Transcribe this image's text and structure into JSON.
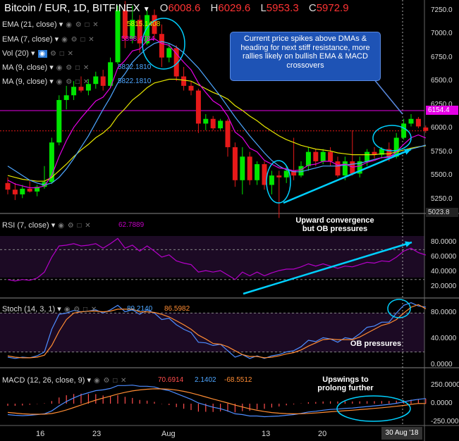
{
  "header": {
    "symbol": "Bitcoin / EUR, 1D, BITFINEX",
    "o_label": "O",
    "o_value": "6008.6",
    "h_label": "H",
    "h_value": "6029.6",
    "l_label": "L",
    "l_value": "5953.3",
    "c_label": "C",
    "c_value": "5972.9"
  },
  "indicators": {
    "ema21": {
      "label": "EMA (21, close)",
      "value": "5815.1408"
    },
    "ema7": {
      "label": "EMA (7, close)",
      "value": "5898.4784"
    },
    "vol": {
      "label": "Vol (20)"
    },
    "ma9a": {
      "label": "MA (9, close)",
      "value": "5822.1810"
    },
    "ma9b": {
      "label": "MA (9, close)",
      "value": "5822.1810"
    },
    "rsi": {
      "label": "RSI (7, close)",
      "value": "62.7889"
    },
    "stoch": {
      "label": "Stoch (14, 3, 1)",
      "k": "89.2140",
      "d": "86.5982"
    },
    "macd": {
      "label": "MACD (12, 26, close, 9)",
      "v1": "70.6914",
      "v2": "2.1402",
      "v3": "-68.5512"
    }
  },
  "annotations": {
    "callout": "Current price spikes above DMAs & heading for next stiff resistance, more rallies likely on bullish EMA & MACD crossovers",
    "rsi_note_1": "Upward convergence",
    "rsi_note_2": "but OB pressures",
    "stoch_note": "OB pressures",
    "macd_note_1": "Upswings to",
    "macd_note_2": "prolong further"
  },
  "price_axis": {
    "ticks": [
      "7250.0",
      "7000.0",
      "6750.0",
      "6500.0",
      "6250.0",
      "6000.0",
      "5750.0",
      "5500.0",
      "5250.0"
    ],
    "last_price": "6154.4",
    "low_tag": "5023.8"
  },
  "rsi_axis": {
    "ticks": [
      "80.0000",
      "60.0000",
      "40.0000",
      "20.0000"
    ]
  },
  "stoch_axis": {
    "ticks": [
      "80.0000",
      "40.0000",
      "0.0000"
    ]
  },
  "macd_axis": {
    "ticks": [
      "250.0000",
      "0.0000",
      "-250.0000"
    ]
  },
  "x_axis": {
    "labels": [
      "16",
      "23",
      "Aug",
      "13",
      "20"
    ],
    "current_date": "30 Aug '18"
  },
  "colors": {
    "up": "#00e600",
    "down": "#e61919",
    "ema21": "#e6e600",
    "ema7": "#e600e6",
    "ma9": "#4da6ff",
    "annotation": "#00d0ff"
  },
  "chart_data": {
    "type": "candlestick",
    "ylim": [
      5000,
      7350
    ],
    "candles": [
      {
        "o": 5420,
        "h": 5480,
        "l": 5300,
        "c": 5350
      },
      {
        "o": 5350,
        "h": 5420,
        "l": 5240,
        "c": 5300
      },
      {
        "o": 5300,
        "h": 5400,
        "l": 5260,
        "c": 5360
      },
      {
        "o": 5360,
        "h": 5440,
        "l": 5320,
        "c": 5330
      },
      {
        "o": 5330,
        "h": 5400,
        "l": 5280,
        "c": 5380
      },
      {
        "o": 5380,
        "h": 5600,
        "l": 5360,
        "c": 5430
      },
      {
        "o": 5430,
        "h": 5900,
        "l": 5410,
        "c": 5850
      },
      {
        "o": 5850,
        "h": 6350,
        "l": 5820,
        "c": 6300
      },
      {
        "o": 6300,
        "h": 6450,
        "l": 6200,
        "c": 6350
      },
      {
        "o": 6350,
        "h": 6500,
        "l": 6300,
        "c": 6440
      },
      {
        "o": 6440,
        "h": 6550,
        "l": 6380,
        "c": 6400
      },
      {
        "o": 6400,
        "h": 6520,
        "l": 6350,
        "c": 6470
      },
      {
        "o": 6470,
        "h": 6600,
        "l": 6420,
        "c": 6550
      },
      {
        "o": 6550,
        "h": 6620,
        "l": 6400,
        "c": 6450
      },
      {
        "o": 6450,
        "h": 6750,
        "l": 6430,
        "c": 6700
      },
      {
        "o": 6700,
        "h": 7300,
        "l": 6680,
        "c": 7250
      },
      {
        "o": 7250,
        "h": 7350,
        "l": 6850,
        "c": 6950
      },
      {
        "o": 6950,
        "h": 7300,
        "l": 6900,
        "c": 7150
      },
      {
        "o": 7150,
        "h": 7200,
        "l": 6800,
        "c": 6900
      },
      {
        "o": 6900,
        "h": 7250,
        "l": 6880,
        "c": 7200
      },
      {
        "o": 7200,
        "h": 7260,
        "l": 6950,
        "c": 7000
      },
      {
        "o": 7000,
        "h": 7100,
        "l": 6650,
        "c": 6750
      },
      {
        "o": 6750,
        "h": 6900,
        "l": 6700,
        "c": 6850
      },
      {
        "o": 6850,
        "h": 6880,
        "l": 6500,
        "c": 6550
      },
      {
        "o": 6550,
        "h": 6650,
        "l": 6400,
        "c": 6450
      },
      {
        "o": 6450,
        "h": 6500,
        "l": 6350,
        "c": 6400
      },
      {
        "o": 6400,
        "h": 6420,
        "l": 5950,
        "c": 6050
      },
      {
        "o": 6050,
        "h": 6150,
        "l": 5980,
        "c": 6100
      },
      {
        "o": 6100,
        "h": 6130,
        "l": 5980,
        "c": 6000
      },
      {
        "o": 6000,
        "h": 6100,
        "l": 5980,
        "c": 6080
      },
      {
        "o": 6080,
        "h": 6100,
        "l": 5700,
        "c": 5800
      },
      {
        "o": 5800,
        "h": 5850,
        "l": 5380,
        "c": 5450
      },
      {
        "o": 5450,
        "h": 5800,
        "l": 5300,
        "c": 5700
      },
      {
        "o": 5700,
        "h": 5750,
        "l": 5400,
        "c": 5450
      },
      {
        "o": 5450,
        "h": 5650,
        "l": 5400,
        "c": 5620
      },
      {
        "o": 5620,
        "h": 5650,
        "l": 5350,
        "c": 5400
      },
      {
        "o": 5400,
        "h": 5550,
        "l": 5300,
        "c": 5500
      },
      {
        "o": 5500,
        "h": 5550,
        "l": 5050,
        "c": 5480
      },
      {
        "o": 5480,
        "h": 5600,
        "l": 5420,
        "c": 5550
      },
      {
        "o": 5550,
        "h": 5900,
        "l": 5450,
        "c": 5500
      },
      {
        "o": 5500,
        "h": 5650,
        "l": 5480,
        "c": 5600
      },
      {
        "o": 5600,
        "h": 5800,
        "l": 5550,
        "c": 5750
      },
      {
        "o": 5750,
        "h": 5780,
        "l": 5600,
        "c": 5650
      },
      {
        "o": 5650,
        "h": 5780,
        "l": 5620,
        "c": 5750
      },
      {
        "o": 5750,
        "h": 5800,
        "l": 5600,
        "c": 5650
      },
      {
        "o": 5650,
        "h": 5700,
        "l": 5480,
        "c": 5500
      },
      {
        "o": 5500,
        "h": 5700,
        "l": 5450,
        "c": 5650
      },
      {
        "o": 5650,
        "h": 5980,
        "l": 5500,
        "c": 5520
      },
      {
        "o": 5520,
        "h": 5700,
        "l": 5480,
        "c": 5650
      },
      {
        "o": 5650,
        "h": 5780,
        "l": 5600,
        "c": 5750
      },
      {
        "o": 5750,
        "h": 5800,
        "l": 5680,
        "c": 5720
      },
      {
        "o": 5720,
        "h": 5800,
        "l": 5680,
        "c": 5780
      },
      {
        "o": 5780,
        "h": 5850,
        "l": 5650,
        "c": 5700
      },
      {
        "o": 5700,
        "h": 5950,
        "l": 5680,
        "c": 5900
      },
      {
        "o": 5900,
        "h": 6100,
        "l": 5880,
        "c": 6050
      },
      {
        "o": 6050,
        "h": 6150,
        "l": 6020,
        "c": 6100
      },
      {
        "o": 6100,
        "h": 6120,
        "l": 6000,
        "c": 6020
      },
      {
        "o": 6008.6,
        "h": 6029.6,
        "l": 5953.3,
        "c": 5972.9
      }
    ],
    "ema21": [
      5500,
      5480,
      5460,
      5450,
      5440,
      5440,
      5480,
      5550,
      5620,
      5700,
      5770,
      5830,
      5900,
      5950,
      6020,
      6130,
      6210,
      6300,
      6360,
      6430,
      6480,
      6500,
      6520,
      6520,
      6510,
      6500,
      6460,
      6420,
      6380,
      6350,
      6310,
      6240,
      6190,
      6130,
      6080,
      6020,
      5970,
      5920,
      5880,
      5850,
      5820,
      5800,
      5780,
      5770,
      5760,
      5740,
      5730,
      5720,
      5720,
      5720,
      5720,
      5730,
      5730,
      5750,
      5770,
      5790,
      5805,
      5815
    ],
    "ema7": [
      5450,
      5410,
      5390,
      5370,
      5370,
      5390,
      5500,
      5700,
      5870,
      6010,
      6110,
      6200,
      6290,
      6330,
      6430,
      6640,
      6720,
      6820,
      6840,
      6930,
      6950,
      6900,
      6880,
      6790,
      6700,
      6620,
      6480,
      6380,
      6290,
      6240,
      6130,
      5960,
      5900,
      5790,
      5750,
      5660,
      5620,
      5580,
      5570,
      5550,
      5560,
      5610,
      5620,
      5650,
      5650,
      5610,
      5620,
      5590,
      5600,
      5640,
      5660,
      5690,
      5690,
      5750,
      5830,
      5900,
      5930,
      5898
    ],
    "ma9": [
      5600,
      5550,
      5500,
      5450,
      5420,
      5400,
      5420,
      5480,
      5570,
      5680,
      5800,
      5920,
      6060,
      6200,
      6330,
      6480,
      6580,
      6700,
      6780,
      6850,
      6900,
      6920,
      6900,
      6860,
      6800,
      6720,
      6640,
      6540,
      6440,
      6340,
      6230,
      6120,
      6020,
      5920,
      5830,
      5740,
      5660,
      5600,
      5560,
      5540,
      5540,
      5560,
      5580,
      5600,
      5600,
      5600,
      5610,
      5620,
      5630,
      5650,
      5670,
      5690,
      5700,
      5720,
      5750,
      5780,
      5800,
      5822
    ],
    "rsi": [
      30,
      28,
      30,
      29,
      32,
      40,
      60,
      75,
      76,
      78,
      75,
      76,
      78,
      72,
      78,
      85,
      72,
      76,
      68,
      75,
      68,
      60,
      63,
      55,
      52,
      50,
      40,
      42,
      40,
      42,
      36,
      30,
      40,
      35,
      40,
      35,
      39,
      42,
      44,
      44,
      47,
      51,
      48,
      51,
      48,
      45,
      48,
      47,
      50,
      53,
      52,
      55,
      54,
      60,
      68,
      72,
      66,
      62.8
    ],
    "stoch_k": [
      12,
      10,
      12,
      11,
      14,
      20,
      55,
      78,
      80,
      84,
      82,
      83,
      85,
      80,
      85,
      92,
      82,
      85,
      78,
      85,
      80,
      70,
      72,
      62,
      55,
      50,
      35,
      34,
      30,
      32,
      22,
      12,
      16,
      10,
      14,
      10,
      14,
      16,
      20,
      22,
      28,
      38,
      36,
      42,
      40,
      35,
      42,
      40,
      48,
      58,
      60,
      66,
      66,
      80,
      92,
      96,
      91,
      89.2
    ],
    "stoch_d": [
      14,
      12,
      11,
      11,
      12,
      15,
      30,
      52,
      70,
      80,
      82,
      83,
      83,
      82,
      83,
      86,
      86,
      86,
      82,
      82,
      81,
      78,
      74,
      68,
      62,
      55,
      46,
      40,
      33,
      32,
      28,
      22,
      16,
      13,
      13,
      11,
      12,
      14,
      17,
      19,
      23,
      29,
      34,
      39,
      40,
      39,
      39,
      39,
      43,
      49,
      55,
      61,
      64,
      70,
      80,
      89,
      93,
      86.6
    ],
    "macd": [
      -150,
      -160,
      -165,
      -160,
      -150,
      -140,
      -100,
      -30,
      30,
      80,
      120,
      150,
      180,
      190,
      210,
      250,
      250,
      255,
      240,
      240,
      230,
      200,
      180,
      140,
      100,
      60,
      10,
      -20,
      -50,
      -70,
      -100,
      -140,
      -150,
      -170,
      -170,
      -180,
      -175,
      -170,
      -160,
      -150,
      -135,
      -115,
      -105,
      -90,
      -80,
      -75,
      -65,
      -60,
      -50,
      -40,
      -30,
      -20,
      -10,
      5,
      25,
      45,
      60,
      70.7
    ],
    "macd_signal": [
      -120,
      -130,
      -140,
      -145,
      -146,
      -145,
      -136,
      -115,
      -86,
      -53,
      -18,
      16,
      49,
      77,
      104,
      133,
      156,
      176,
      189,
      199,
      205,
      204,
      199,
      187,
      170,
      148,
      120,
      92,
      64,
      37,
      10,
      -20,
      -46,
      -71,
      -91,
      -109,
      -122,
      -131,
      -137,
      -140,
      -139,
      -134,
      -128,
      -120,
      -112,
      -105,
      -97,
      -90,
      -82,
      -74,
      -65,
      -56,
      -47,
      -36,
      -24,
      -10,
      3,
      2.1
    ]
  }
}
